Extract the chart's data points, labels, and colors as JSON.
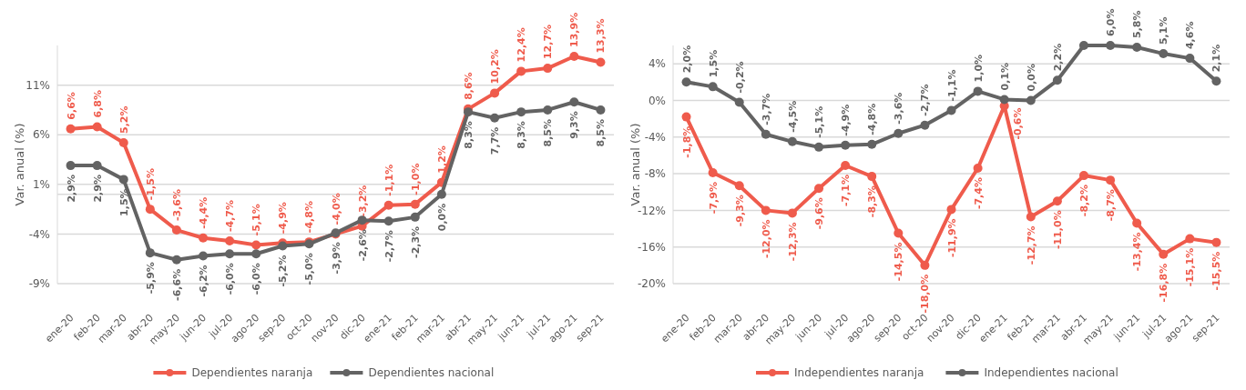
{
  "chart_data": [
    {
      "type": "line",
      "ylabel": "Var. anual (%)",
      "categories": [
        "ene-20",
        "feb-20",
        "mar-20",
        "abr-20",
        "may-20",
        "jun-20",
        "jul-20",
        "ago-20",
        "sep-20",
        "oct-20",
        "nov-20",
        "dic-20",
        "ene-21",
        "feb-21",
        "mar-21",
        "abr-21",
        "may-21",
        "jun-21",
        "jul-21",
        "ago-21",
        "sep-21"
      ],
      "series": [
        {
          "name": "Dependientes naranja",
          "color": "#ef5b4c",
          "values": [
            6.6,
            6.8,
            5.2,
            -1.5,
            -3.6,
            -4.4,
            -4.7,
            -5.1,
            -4.9,
            -4.8,
            -4.0,
            -3.2,
            -1.1,
            -1.0,
            1.2,
            8.6,
            10.2,
            12.4,
            12.7,
            13.9,
            13.3
          ],
          "value_labels": [
            "6,6%",
            "6,8%",
            "5,2%",
            "-1,5%",
            "-3,6%",
            "-4,4%",
            "-4,7%",
            "-5,1%",
            "-4,9%",
            "-4,8%",
            "-4,0%",
            "-3,2%",
            "-1,1%",
            "-1,0%",
            "1,2%",
            "8,6%",
            "10,2%",
            "12,4%",
            "12,7%",
            "13,9%",
            "13,3%"
          ]
        },
        {
          "name": "Dependientes nacional",
          "color": "#636363",
          "values": [
            2.9,
            2.9,
            1.5,
            -5.9,
            -6.6,
            -6.2,
            -6.0,
            -6.0,
            -5.2,
            -5.0,
            -3.9,
            -2.6,
            -2.7,
            -2.3,
            0.0,
            8.3,
            7.7,
            8.3,
            8.5,
            9.3,
            8.5
          ],
          "value_labels": [
            "2,9%",
            "2,9%",
            "1,5%",
            "-5,9%",
            "-6,6%",
            "-6,2%",
            "-6,0%",
            "-6,0%",
            "-5,2%",
            "-5,0%",
            "-3,9%",
            "-2,6%",
            "-2,7%",
            "-2,3%",
            "0,0%",
            "8,3%",
            "7,7%",
            "8,3%",
            "8,5%",
            "9,3%",
            "8,5%"
          ]
        }
      ],
      "ylim": [
        -9,
        15
      ],
      "yticks": [
        {
          "value": -9,
          "label": "-9%"
        },
        {
          "value": -4,
          "label": "-4%"
        },
        {
          "value": 1,
          "label": "1%"
        },
        {
          "value": 6,
          "label": "6%"
        },
        {
          "value": 11,
          "label": "11%"
        }
      ],
      "ref_lines": [
        {
          "axis": "y",
          "value": 0,
          "color": "#d9d9d9"
        }
      ],
      "grid": "y",
      "legend": "bottom",
      "marker": "circle",
      "line_style": "solid"
    },
    {
      "type": "line",
      "ylabel": "Var. anual (%)",
      "categories": [
        "ene-20",
        "feb-20",
        "mar-20",
        "abr-20",
        "may-20",
        "jun-20",
        "jul-20",
        "ago-20",
        "sep-20",
        "oct-20",
        "nov-20",
        "dic-20",
        "ene-21",
        "feb-21",
        "mar-21",
        "abr-21",
        "may-21",
        "jun-21",
        "jul-21",
        "ago-21",
        "sep-21"
      ],
      "series": [
        {
          "name": "Independientes naranja",
          "color": "#ef5b4c",
          "values": [
            -1.8,
            -7.9,
            -9.3,
            -12.0,
            -12.3,
            -9.6,
            -7.1,
            -8.3,
            -14.5,
            -18.0,
            -11.9,
            -7.4,
            -0.6,
            -12.7,
            -11.0,
            -8.2,
            -8.7,
            -13.4,
            -16.8,
            -15.1,
            -15.5
          ],
          "value_labels": [
            "-1,8%",
            "-7,9%",
            "-9,3%",
            "-12,0%",
            "-12,3%",
            "-9,6%",
            "-7,1%",
            "-8,3%",
            "-14,5%",
            "-18,0%",
            "-11,9%",
            "-7,4%",
            "-0,6%",
            "-12,7%",
            "-11,0%",
            "-8,2%",
            "-8,7%",
            "-13,4%",
            "-16,8%",
            "-15,1%",
            "-15,5%"
          ]
        },
        {
          "name": "Independientes nacional",
          "color": "#636363",
          "values": [
            2.0,
            1.5,
            -0.2,
            -3.7,
            -4.5,
            -5.1,
            -4.9,
            -4.8,
            -3.6,
            -2.7,
            -1.1,
            1.0,
            0.1,
            0.0,
            2.2,
            6.0,
            6.0,
            5.8,
            5.1,
            4.6,
            2.1
          ],
          "value_labels": [
            "2,0%",
            "1,5%",
            "-0,2%",
            "-3,7%",
            "-4,5%",
            "-5,1%",
            "-4,9%",
            "-4,8%",
            "-3,6%",
            "-2,7%",
            "-1,1%",
            "1,0%",
            "0,1%",
            "0,0%",
            "2,2%",
            null,
            "6,0%",
            "5,8%",
            "5,1%",
            "4,6%",
            "2,1%"
          ]
        }
      ],
      "ylim": [
        -20,
        6
      ],
      "yticks": [
        {
          "value": -20,
          "label": "-20%"
        },
        {
          "value": -16,
          "label": "-16%"
        },
        {
          "value": -12,
          "label": "-12%"
        },
        {
          "value": -8,
          "label": "-8%"
        },
        {
          "value": -4,
          "label": "-4%"
        },
        {
          "value": 0,
          "label": "0%"
        },
        {
          "value": 4,
          "label": "4%"
        }
      ],
      "grid": "y",
      "legend": "bottom",
      "marker": "circle",
      "line_style": "solid"
    }
  ]
}
